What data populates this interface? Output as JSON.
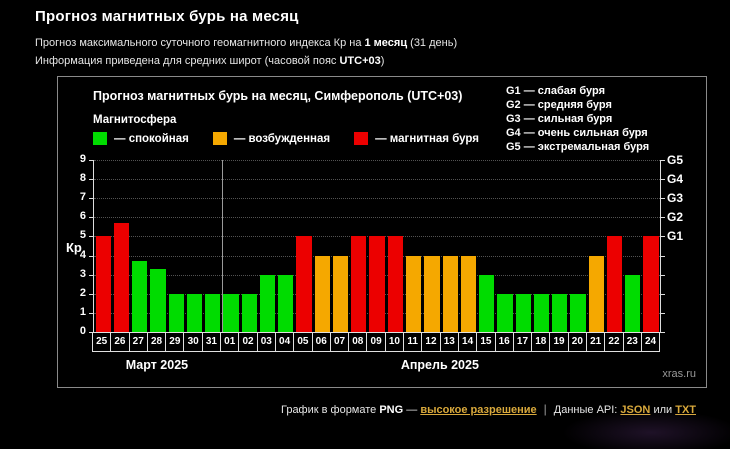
{
  "page": {
    "title": "Прогноз магнитных бурь на месяц",
    "subtitle": {
      "prefix": "Прогноз максимального суточного геомагнитного индекса Кр на ",
      "bold": "1 месяц",
      "suffix": " (31 день)"
    },
    "info": {
      "prefix": "Информация приведена для средних широт (часовой пояс ",
      "bold": "UTC+03",
      "suffix": ")"
    }
  },
  "chart": {
    "title": "Прогноз магнитных бурь на месяц, Симферополь (UTC+03)",
    "magnetosphere_label": "Магнитосфера",
    "legend": [
      {
        "label": "— спокойная",
        "color": "#00dc00"
      },
      {
        "label": "— возбужденная",
        "color": "#f5a800"
      },
      {
        "label": "— магнитная буря",
        "color": "#ec0000"
      }
    ],
    "g_scale": [
      "G1 — слабая буря",
      "G2 — средняя буря",
      "G3 — сильная буря",
      "G4 — очень сильная буря",
      "G5 — экстремальная буря"
    ],
    "y_axis_label": "Кр",
    "watermark": "xras.ru"
  },
  "chart_data": {
    "type": "bar",
    "title": "Прогноз магнитных бурь на месяц, Симферополь (UTC+03)",
    "categories": [
      "25",
      "26",
      "27",
      "28",
      "29",
      "30",
      "31",
      "01",
      "02",
      "03",
      "04",
      "05",
      "06",
      "07",
      "08",
      "09",
      "10",
      "11",
      "12",
      "13",
      "14",
      "15",
      "16",
      "17",
      "18",
      "19",
      "20",
      "21",
      "22",
      "23",
      "24"
    ],
    "values": [
      5,
      5.7,
      3.7,
      3.3,
      2,
      2,
      2,
      2,
      2,
      3,
      3,
      5,
      4,
      4,
      5,
      5,
      5,
      4,
      4,
      4,
      4,
      3,
      2,
      2,
      2,
      2,
      2,
      4,
      5,
      3,
      5
    ],
    "ylabel": "Кр",
    "ylim": [
      0,
      9
    ],
    "yticks": [
      0,
      1,
      2,
      3,
      4,
      5,
      6,
      7,
      8,
      9
    ],
    "right_axis": [
      {
        "label": "G1",
        "value": 5
      },
      {
        "label": "G2",
        "value": 6
      },
      {
        "label": "G3",
        "value": 7
      },
      {
        "label": "G4",
        "value": 8
      },
      {
        "label": "G5",
        "value": 9
      }
    ],
    "color_rule": {
      "active_min": 4,
      "storm_min": 5
    },
    "colors": {
      "quiet": "#00dc00",
      "active": "#f5a800",
      "storm": "#ec0000"
    },
    "month_separator_after_index": 6,
    "months": [
      {
        "label": "Март 2025",
        "span_days": 7
      },
      {
        "label": "Апрель 2025",
        "span_days": 24
      }
    ],
    "grid": "dotted-horizontal",
    "legend_position": "top-left"
  },
  "footer": {
    "text1": "График в формате ",
    "bold1": "PNG",
    "dash": " — ",
    "link_hires": "высокое разрешение",
    "separator": "|",
    "text2": "Данные API: ",
    "link_json": "JSON",
    "text_or": " или ",
    "link_txt": "TXT",
    "link_color": "#d9a93c"
  }
}
